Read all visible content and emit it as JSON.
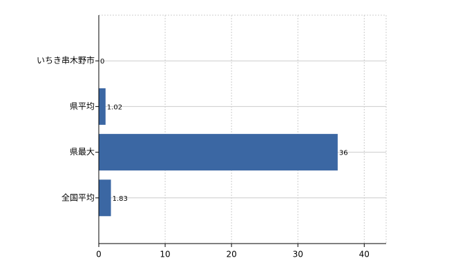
{
  "chart_data": {
    "type": "bar",
    "orientation": "horizontal",
    "categories": [
      "いちき串木野市",
      "県平均",
      "県最大",
      "全国平均"
    ],
    "values": [
      0,
      1.02,
      36,
      1.83
    ],
    "color": "#3b67a3",
    "xlim": [
      0,
      43.3
    ],
    "xticks": [
      0,
      10,
      20,
      30,
      40
    ],
    "grid": true
  }
}
